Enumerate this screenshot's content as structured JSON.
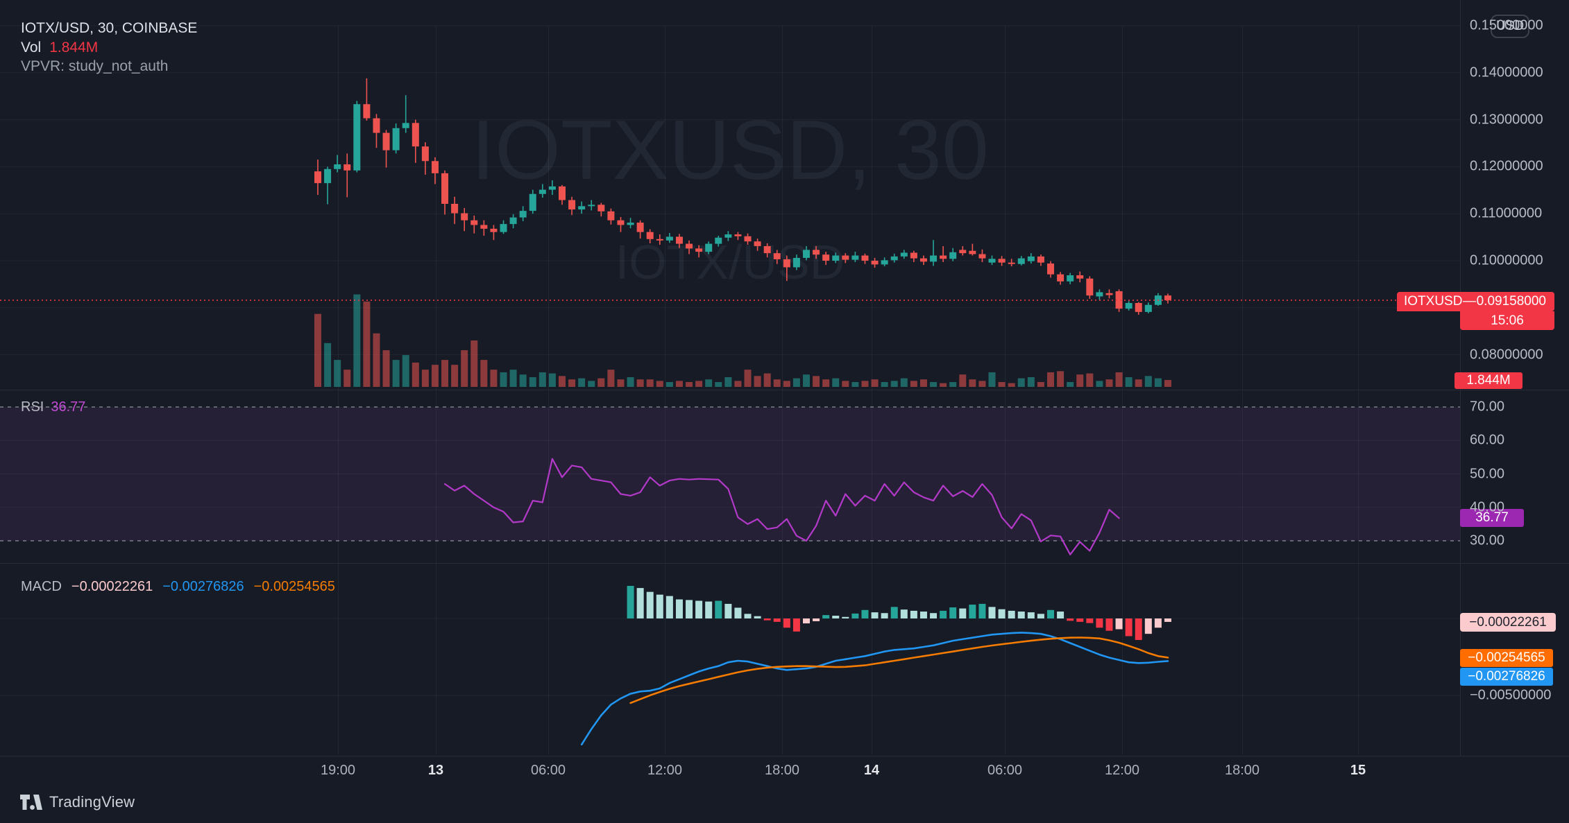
{
  "header": {
    "title": "IOTX/USD, 30, COINBASE",
    "vol_label": "Vol",
    "vol_value": "1.844M",
    "vpvr": "VPVR: study_not_auth"
  },
  "watermark": {
    "line1": "IOTXUSD, 30",
    "line2": "IOTX/USD"
  },
  "currency_button": "USD",
  "price_tag": {
    "symbol": "IOTXUSD",
    "separator": "—",
    "price": "0.09158000",
    "countdown": "15:06"
  },
  "volume_tag": "1.844M",
  "rsi_legend": {
    "label": "RSI",
    "value": "36.77"
  },
  "macd_legend": {
    "label": "MACD",
    "hist": "−0.00022261",
    "macd": "−0.00276826",
    "signal": "−0.00254565"
  },
  "badges": {
    "rsi": "36.77",
    "macd_hist": "−0.00022261",
    "macd_signal": "−0.00254565",
    "macd_macd": "−0.00276826"
  },
  "footer": {
    "logo_text": "TradingView"
  },
  "colors": {
    "bg": "#171b26",
    "grid": "rgba(255,255,255,0.05)",
    "up": "#26a69a",
    "down": "#ef5350",
    "accent_red": "#f23645",
    "vol_up": "rgba(38,166,154,0.55)",
    "vol_down": "rgba(239,83,80,0.55)",
    "rsi_line": "#b339c9",
    "rsi_band": "rgba(136,61,166,0.14)",
    "rsi_dashed": "#9aa0ab",
    "macd_line": "#2196f3",
    "signal_line": "#f57c00",
    "hist_up_rise": "#26a69a",
    "hist_up_fall": "#b2dfdb",
    "hist_down_fall": "#f23645",
    "hist_down_rise": "#fccbcd",
    "watermark": "rgba(180,195,235,0.07)"
  },
  "chart_data": {
    "type": "candlestick",
    "symbol": "IOTX/USD",
    "interval": "30",
    "exchange": "COINBASE",
    "last_price": 0.09158,
    "countdown": "15:06",
    "last_volume_m": 1.844,
    "price_axis_labels": [
      {
        "text": "0.15000000",
        "value": 0.15
      },
      {
        "text": "0.14000000",
        "value": 0.14
      },
      {
        "text": "0.13000000",
        "value": 0.13
      },
      {
        "text": "0.12000000",
        "value": 0.12
      },
      {
        "text": "0.11000000",
        "value": 0.11
      },
      {
        "text": "0.10000000",
        "value": 0.1
      },
      {
        "text": "0.08000000",
        "value": 0.08
      }
    ],
    "time_ticks": [
      {
        "label": "19:00",
        "major": false
      },
      {
        "label": "13",
        "major": true
      },
      {
        "label": "06:00",
        "major": false
      },
      {
        "label": "12:00",
        "major": false
      },
      {
        "label": "18:00",
        "major": false
      },
      {
        "label": "14",
        "major": true
      },
      {
        "label": "06:00",
        "major": false
      },
      {
        "label": "12:00",
        "major": false
      },
      {
        "label": "18:00",
        "major": false
      },
      {
        "label": "15",
        "major": true
      }
    ],
    "candles": [
      [
        0.119,
        0.1215,
        0.114,
        0.1165
      ],
      [
        0.1165,
        0.12,
        0.112,
        0.1195
      ],
      [
        0.1195,
        0.1225,
        0.1188,
        0.1205
      ],
      [
        0.1205,
        0.1228,
        0.1135,
        0.1192
      ],
      [
        0.1192,
        0.134,
        0.1188,
        0.1333
      ],
      [
        0.1333,
        0.1388,
        0.1298,
        0.1303
      ],
      [
        0.1303,
        0.1312,
        0.124,
        0.1272
      ],
      [
        0.1272,
        0.1278,
        0.1198,
        0.1235
      ],
      [
        0.1235,
        0.1292,
        0.1228,
        0.1282
      ],
      [
        0.1282,
        0.1352,
        0.1272,
        0.1293
      ],
      [
        0.1293,
        0.13,
        0.1208,
        0.1243
      ],
      [
        0.1243,
        0.1252,
        0.1183,
        0.1212
      ],
      [
        0.1212,
        0.122,
        0.1163,
        0.1186
      ],
      [
        0.1186,
        0.1192,
        0.1098,
        0.1121
      ],
      [
        0.1121,
        0.1136,
        0.1078,
        0.1101
      ],
      [
        0.1101,
        0.1112,
        0.1063,
        0.1086
      ],
      [
        0.1086,
        0.1096,
        0.1058,
        0.1076
      ],
      [
        0.1076,
        0.1086,
        0.1053,
        0.1068
      ],
      [
        0.1068,
        0.1076,
        0.1044,
        0.1061
      ],
      [
        0.1061,
        0.1086,
        0.1057,
        0.1078
      ],
      [
        0.1078,
        0.1099,
        0.1069,
        0.1092
      ],
      [
        0.1092,
        0.1116,
        0.1084,
        0.1106
      ],
      [
        0.1106,
        0.1151,
        0.11,
        0.1142
      ],
      [
        0.1142,
        0.1163,
        0.1134,
        0.1151
      ],
      [
        0.1151,
        0.1171,
        0.114,
        0.1158
      ],
      [
        0.1158,
        0.1161,
        0.1119,
        0.1129
      ],
      [
        0.1129,
        0.1136,
        0.1097,
        0.1109
      ],
      [
        0.1109,
        0.1126,
        0.11,
        0.1116
      ],
      [
        0.1116,
        0.1129,
        0.1107,
        0.1119
      ],
      [
        0.1119,
        0.1123,
        0.1094,
        0.1105
      ],
      [
        0.1105,
        0.1111,
        0.1077,
        0.1086
      ],
      [
        0.1086,
        0.1093,
        0.1061,
        0.1076
      ],
      [
        0.1076,
        0.1091,
        0.1069,
        0.1081
      ],
      [
        0.1081,
        0.1086,
        0.1047,
        0.1061
      ],
      [
        0.1061,
        0.1067,
        0.1037,
        0.1046
      ],
      [
        0.1046,
        0.1056,
        0.1034,
        0.1043
      ],
      [
        0.1043,
        0.1059,
        0.1038,
        0.1051
      ],
      [
        0.1051,
        0.1057,
        0.1027,
        0.1036
      ],
      [
        0.1036,
        0.1043,
        0.1014,
        0.1026
      ],
      [
        0.1026,
        0.1033,
        0.1007,
        0.1019
      ],
      [
        0.1019,
        0.1041,
        0.1014,
        0.1036
      ],
      [
        0.1036,
        0.1053,
        0.103,
        0.1049
      ],
      [
        0.1049,
        0.1063,
        0.1042,
        0.1056
      ],
      [
        0.1056,
        0.1061,
        0.1044,
        0.1052
      ],
      [
        0.1052,
        0.1058,
        0.1034,
        0.1041
      ],
      [
        0.1041,
        0.1047,
        0.1021,
        0.1031
      ],
      [
        0.1031,
        0.1037,
        0.1007,
        0.1016
      ],
      [
        0.1016,
        0.1023,
        0.0993,
        0.1003
      ],
      [
        0.1003,
        0.1011,
        0.0957,
        0.0986
      ],
      [
        0.0986,
        0.1013,
        0.098,
        0.1006
      ],
      [
        0.1006,
        0.1031,
        0.1001,
        0.1023
      ],
      [
        0.1023,
        0.1031,
        0.1004,
        0.1013
      ],
      [
        0.1013,
        0.1019,
        0.0991,
        0.1
      ],
      [
        0.1,
        0.1017,
        0.0995,
        0.1011
      ],
      [
        0.1011,
        0.1016,
        0.0995,
        0.1002
      ],
      [
        0.1002,
        0.1019,
        0.0997,
        0.1011
      ],
      [
        0.1011,
        0.1015,
        0.0993,
        0.1
      ],
      [
        0.1,
        0.1006,
        0.0985,
        0.0992
      ],
      [
        0.0992,
        0.1007,
        0.0988,
        0.1001
      ],
      [
        0.1001,
        0.1015,
        0.0996,
        0.1009
      ],
      [
        0.1009,
        0.1023,
        0.1004,
        0.1017
      ],
      [
        0.1017,
        0.1021,
        0.0997,
        0.1005
      ],
      [
        0.1005,
        0.1011,
        0.0991,
        0.0998
      ],
      [
        0.0998,
        0.1044,
        0.0989,
        0.1011
      ],
      [
        0.1011,
        0.1031,
        0.0997,
        0.1004
      ],
      [
        0.1004,
        0.1027,
        0.0999,
        0.1018
      ],
      [
        0.1023,
        0.1031,
        0.1011,
        0.1016
      ],
      [
        0.1021,
        0.1036,
        0.1011,
        0.1014
      ],
      [
        0.1014,
        0.1024,
        0.0997,
        0.1005
      ],
      [
        0.0996,
        0.1011,
        0.0991,
        0.1004
      ],
      [
        0.1004,
        0.101,
        0.0989,
        0.0996
      ],
      [
        0.0996,
        0.1004,
        0.0988,
        0.0993
      ],
      [
        0.0993,
        0.101,
        0.099,
        0.1005
      ],
      [
        0.0999,
        0.1016,
        0.0994,
        0.1009
      ],
      [
        0.1009,
        0.1013,
        0.0989,
        0.0996
      ],
      [
        0.0994,
        0.0999,
        0.0964,
        0.0971
      ],
      [
        0.0971,
        0.0976,
        0.0949,
        0.0956
      ],
      [
        0.0956,
        0.0974,
        0.095,
        0.0969
      ],
      [
        0.0969,
        0.0977,
        0.0954,
        0.0962
      ],
      [
        0.0962,
        0.0967,
        0.0919,
        0.0926
      ],
      [
        0.0924,
        0.0939,
        0.0917,
        0.0933
      ],
      [
        0.0931,
        0.0939,
        0.092,
        0.0927
      ],
      [
        0.0935,
        0.0939,
        0.0891,
        0.0898
      ],
      [
        0.0898,
        0.0914,
        0.0894,
        0.091
      ],
      [
        0.091,
        0.0912,
        0.0885,
        0.0891
      ],
      [
        0.0891,
        0.0911,
        0.0888,
        0.0906
      ],
      [
        0.0906,
        0.0931,
        0.0904,
        0.0926
      ],
      [
        0.0926,
        0.093,
        0.0909,
        0.09158
      ]
    ],
    "volumes_m": [
      19.5,
      11.7,
      7.2,
      4.6,
      24.7,
      22.8,
      14.3,
      9.8,
      7.2,
      8.5,
      6.5,
      4.6,
      5.9,
      7.2,
      5.9,
      9.8,
      12.4,
      7.2,
      4.6,
      3.9,
      4.6,
      3.3,
      2.6,
      3.9,
      3.6,
      2.9,
      2.0,
      2.3,
      1.6,
      2.3,
      4.6,
      2.0,
      2.6,
      2.0,
      2.0,
      1.6,
      1.3,
      1.6,
      1.3,
      1.6,
      2.0,
      1.3,
      2.6,
      1.6,
      4.6,
      2.9,
      3.6,
      2.0,
      1.6,
      2.3,
      3.3,
      2.9,
      2.0,
      2.3,
      1.6,
      1.3,
      1.6,
      2.0,
      1.3,
      1.6,
      2.3,
      1.6,
      2.0,
      1.3,
      1.0,
      1.3,
      3.3,
      2.0,
      1.6,
      3.9,
      1.3,
      1.0,
      2.3,
      2.6,
      1.3,
      3.9,
      4.2,
      1.3,
      3.3,
      3.6,
      1.6,
      2.0,
      3.9,
      2.6,
      2.0,
      2.9,
      2.3,
      1.844
    ],
    "rsi": {
      "start_index": 13,
      "levels": [
        70,
        30
      ],
      "axis_labels": [
        {
          "text": "70.00",
          "value": 70
        },
        {
          "text": "60.00",
          "value": 60
        },
        {
          "text": "50.00",
          "value": 50
        },
        {
          "text": "40.00",
          "value": 40
        },
        {
          "text": "30.00",
          "value": 30
        }
      ],
      "last": 36.77,
      "values": [
        47.0,
        45.0,
        46.5,
        44.0,
        42.0,
        40.0,
        38.7,
        35.5,
        35.8,
        42.0,
        41.5,
        54.5,
        49.0,
        52.5,
        52.0,
        48.5,
        48.0,
        47.5,
        44.0,
        43.5,
        44.5,
        49.0,
        46.5,
        48.0,
        48.5,
        48.3,
        48.5,
        48.4,
        48.3,
        45.5,
        37.0,
        35.0,
        36.5,
        33.5,
        34.0,
        36.5,
        31.5,
        30.0,
        34.5,
        42.0,
        37.5,
        44.0,
        40.5,
        43.5,
        42.0,
        47.0,
        43.5,
        47.5,
        44.5,
        43.0,
        42.0,
        46.5,
        43.3,
        44.9,
        43.1,
        47.0,
        43.7,
        37.0,
        33.7,
        38.0,
        36.1,
        29.8,
        31.6,
        31.3,
        25.9,
        29.7,
        27.0,
        32.4,
        39.3,
        36.77
      ]
    },
    "macd": {
      "axis_label": {
        "text": "−0.00500000",
        "value": -0.005
      },
      "last": {
        "histogram": -0.00022261,
        "macd": -0.00276826,
        "signal": -0.00254565
      },
      "histogram": {
        "start_index": 32,
        "values": [
          0.00212,
          0.00198,
          0.00173,
          0.00155,
          0.00146,
          0.00124,
          0.0012,
          0.00115,
          0.0011,
          0.00115,
          0.00095,
          0.0007,
          0.0003,
          0.00015,
          -0.00012,
          -0.00022,
          -0.0006,
          -0.00085,
          -0.00032,
          -0.00018,
          0.00022,
          0.00018,
          0.0001,
          0.00032,
          0.00055,
          0.0004,
          0.00035,
          0.00075,
          0.00058,
          0.0005,
          0.00045,
          0.00035,
          0.0005,
          0.00072,
          0.00065,
          0.0009,
          0.00095,
          0.00075,
          0.0006,
          0.0005,
          0.00045,
          0.0004,
          0.0003,
          0.00055,
          0.00045,
          -0.00015,
          -0.00022,
          -0.0003,
          -0.0006,
          -0.0008,
          -0.0007,
          -0.00115,
          -0.0014,
          -0.001,
          -0.0006,
          -0.00022261
        ]
      },
      "macd_line": {
        "start_index": 27,
        "values": [
          -0.0082,
          -0.0072,
          -0.0063,
          -0.0056,
          -0.0052,
          -0.0049,
          -0.00475,
          -0.0047,
          -0.00455,
          -0.0042,
          -0.00395,
          -0.0037,
          -0.00345,
          -0.00325,
          -0.0031,
          -0.00285,
          -0.00275,
          -0.0028,
          -0.00295,
          -0.0031,
          -0.00325,
          -0.00335,
          -0.0033,
          -0.00325,
          -0.00315,
          -0.00295,
          -0.00275,
          -0.00265,
          -0.00255,
          -0.00245,
          -0.0023,
          -0.00215,
          -0.00205,
          -0.002,
          -0.00195,
          -0.00185,
          -0.00175,
          -0.0016,
          -0.00145,
          -0.00135,
          -0.00125,
          -0.00115,
          -0.00105,
          -0.001,
          -0.00095,
          -0.00092,
          -0.00095,
          -0.001,
          -0.00115,
          -0.00135,
          -0.0016,
          -0.00185,
          -0.0021,
          -0.00235,
          -0.00255,
          -0.0027,
          -0.00285,
          -0.0029,
          -0.00288,
          -0.00282,
          -0.00276826
        ]
      },
      "signal_line": {
        "start_index": 32,
        "values": [
          -0.0055,
          -0.00525,
          -0.005,
          -0.00478,
          -0.00458,
          -0.0044,
          -0.00425,
          -0.0041,
          -0.00395,
          -0.0038,
          -0.00365,
          -0.0035,
          -0.00338,
          -0.00328,
          -0.0032,
          -0.00315,
          -0.00312,
          -0.0031,
          -0.0031,
          -0.00312,
          -0.00314,
          -0.00316,
          -0.00315,
          -0.0031,
          -0.00305,
          -0.00295,
          -0.00285,
          -0.00275,
          -0.00265,
          -0.00255,
          -0.00245,
          -0.00235,
          -0.00225,
          -0.00215,
          -0.00205,
          -0.00195,
          -0.00185,
          -0.00176,
          -0.00168,
          -0.0016,
          -0.00152,
          -0.00145,
          -0.00138,
          -0.00132,
          -0.00128,
          -0.00125,
          -0.00124,
          -0.00126,
          -0.0013,
          -0.00142,
          -0.00158,
          -0.00178,
          -0.002,
          -0.00225,
          -0.00245,
          -0.00254565
        ]
      }
    }
  }
}
